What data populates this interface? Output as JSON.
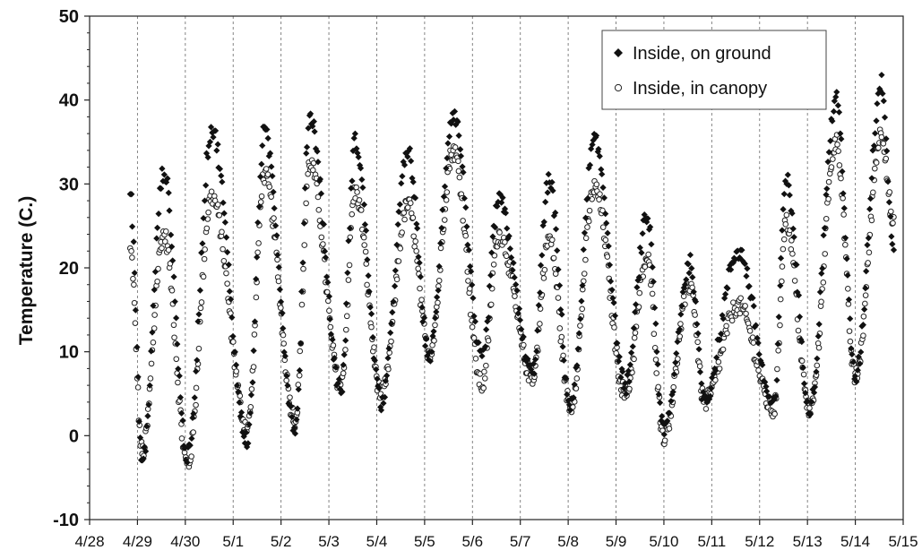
{
  "chart_data": {
    "type": "scatter",
    "title": "",
    "xlabel": "",
    "ylabel": "Temperature (C.)",
    "ylim": [
      -10,
      50
    ],
    "yticks": [
      -10,
      0,
      10,
      20,
      30,
      40,
      50
    ],
    "x_tick_labels": [
      "4/28",
      "4/29",
      "4/30",
      "5/1",
      "5/2",
      "5/3",
      "5/4",
      "5/5",
      "5/6",
      "5/7",
      "5/8",
      "5/9",
      "5/10",
      "5/11",
      "5/12",
      "5/13",
      "5/14",
      "5/15"
    ],
    "xlim_days": [
      0,
      17
    ],
    "grid": "vertical dashed at each date",
    "legend_position": "top-right",
    "series": [
      {
        "name": "Inside, on ground",
        "marker": "diamond-filled",
        "color": "#111111",
        "daily_extremes": [
          {
            "x": 0.85,
            "y": 28.5
          },
          {
            "x": 1.1,
            "y": -3.0
          },
          {
            "x": 1.55,
            "y": 31.5
          },
          {
            "x": 2.05,
            "y": -2.5
          },
          {
            "x": 2.55,
            "y": 36.5
          },
          {
            "x": 3.3,
            "y": -0.5
          },
          {
            "x": 3.65,
            "y": 36.0
          },
          {
            "x": 4.3,
            "y": 1.0
          },
          {
            "x": 4.6,
            "y": 38.2
          },
          {
            "x": 5.25,
            "y": 5.5
          },
          {
            "x": 5.55,
            "y": 35.0
          },
          {
            "x": 6.1,
            "y": 4.0
          },
          {
            "x": 6.65,
            "y": 33.8
          },
          {
            "x": 7.1,
            "y": 9.5
          },
          {
            "x": 7.6,
            "y": 38.5
          },
          {
            "x": 8.2,
            "y": 9.0
          },
          {
            "x": 8.55,
            "y": 28.0
          },
          {
            "x": 9.25,
            "y": 7.5
          },
          {
            "x": 9.6,
            "y": 30.5
          },
          {
            "x": 10.05,
            "y": 3.5
          },
          {
            "x": 10.55,
            "y": 35.0
          },
          {
            "x": 11.2,
            "y": 6.0
          },
          {
            "x": 11.65,
            "y": 26.0
          },
          {
            "x": 12.0,
            "y": 0.5
          },
          {
            "x": 12.55,
            "y": 20.5
          },
          {
            "x": 12.85,
            "y": 4.5
          },
          {
            "x": 13.55,
            "y": 22.0
          },
          {
            "x": 14.3,
            "y": 3.5
          },
          {
            "x": 14.55,
            "y": 30.5
          },
          {
            "x": 15.05,
            "y": 3.5
          },
          {
            "x": 15.6,
            "y": 40.0
          },
          {
            "x": 16.0,
            "y": 7.0
          },
          {
            "x": 16.55,
            "y": 42.0
          },
          {
            "x": 16.8,
            "y": 22.5
          }
        ]
      },
      {
        "name": "Inside, in canopy",
        "marker": "circle-open",
        "color": "#111111",
        "daily_extremes": [
          {
            "x": 0.85,
            "y": 22.0
          },
          {
            "x": 1.1,
            "y": -2.0
          },
          {
            "x": 1.55,
            "y": 24.0
          },
          {
            "x": 2.05,
            "y": -3.5
          },
          {
            "x": 2.55,
            "y": 28.5
          },
          {
            "x": 3.3,
            "y": 1.0
          },
          {
            "x": 3.65,
            "y": 31.0
          },
          {
            "x": 4.3,
            "y": 2.0
          },
          {
            "x": 4.6,
            "y": 32.5
          },
          {
            "x": 5.25,
            "y": 6.0
          },
          {
            "x": 5.55,
            "y": 29.0
          },
          {
            "x": 6.1,
            "y": 5.0
          },
          {
            "x": 6.65,
            "y": 27.5
          },
          {
            "x": 7.1,
            "y": 10.0
          },
          {
            "x": 7.6,
            "y": 34.0
          },
          {
            "x": 8.2,
            "y": 6.0
          },
          {
            "x": 8.55,
            "y": 24.0
          },
          {
            "x": 9.25,
            "y": 7.0
          },
          {
            "x": 9.6,
            "y": 23.5
          },
          {
            "x": 10.05,
            "y": 3.5
          },
          {
            "x": 10.55,
            "y": 29.5
          },
          {
            "x": 11.2,
            "y": 5.0
          },
          {
            "x": 11.65,
            "y": 21.0
          },
          {
            "x": 12.0,
            "y": 0.0
          },
          {
            "x": 12.55,
            "y": 18.0
          },
          {
            "x": 12.85,
            "y": 4.0
          },
          {
            "x": 13.55,
            "y": 15.5
          },
          {
            "x": 14.3,
            "y": 3.0
          },
          {
            "x": 14.55,
            "y": 25.5
          },
          {
            "x": 15.05,
            "y": 3.0
          },
          {
            "x": 15.6,
            "y": 35.0
          },
          {
            "x": 16.0,
            "y": 7.0
          },
          {
            "x": 16.55,
            "y": 36.0
          },
          {
            "x": 16.8,
            "y": 25.0
          }
        ]
      }
    ]
  }
}
